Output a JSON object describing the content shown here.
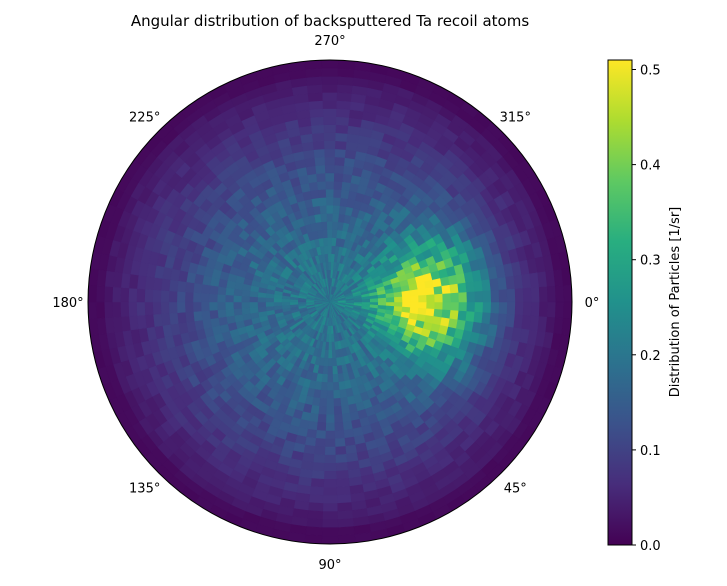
{
  "chart_data": {
    "type": "heatmap",
    "subtype": "polar-heatmap",
    "title": "Angular distribution of backsputtered Ta recoil atoms",
    "angular_tick_labels": [
      {
        "deg": 0,
        "label": "0°"
      },
      {
        "deg": 45,
        "label": "45°"
      },
      {
        "deg": 90,
        "label": "90°"
      },
      {
        "deg": 135,
        "label": "135°"
      },
      {
        "deg": 180,
        "label": "180°"
      },
      {
        "deg": 225,
        "label": "225°"
      },
      {
        "deg": 270,
        "label": "270°"
      },
      {
        "deg": 315,
        "label": "315°"
      }
    ],
    "angular_direction": "clockwise",
    "zero_location": "right",
    "radial_ticks_visible": false,
    "grid": false,
    "colorbar": {
      "label": "Distribution of Particles [1/sr]",
      "colormap": "viridis",
      "range": [
        0.0,
        0.51
      ],
      "ticks": [
        "0.0",
        "0.1",
        "0.2",
        "0.3",
        "0.4",
        "0.5"
      ],
      "tick_values": [
        0.0,
        0.1,
        0.2,
        0.3,
        0.4,
        0.5
      ],
      "placement": "right"
    },
    "grid_bins": {
      "azimuthal": 90,
      "radial": 30
    },
    "hotspot": {
      "azimuth_deg": 0,
      "radius_fraction": 0.4,
      "peak_value": 0.5
    },
    "notes_values": {
      "center_value": 0.2,
      "edge_value": 0.02
    }
  }
}
